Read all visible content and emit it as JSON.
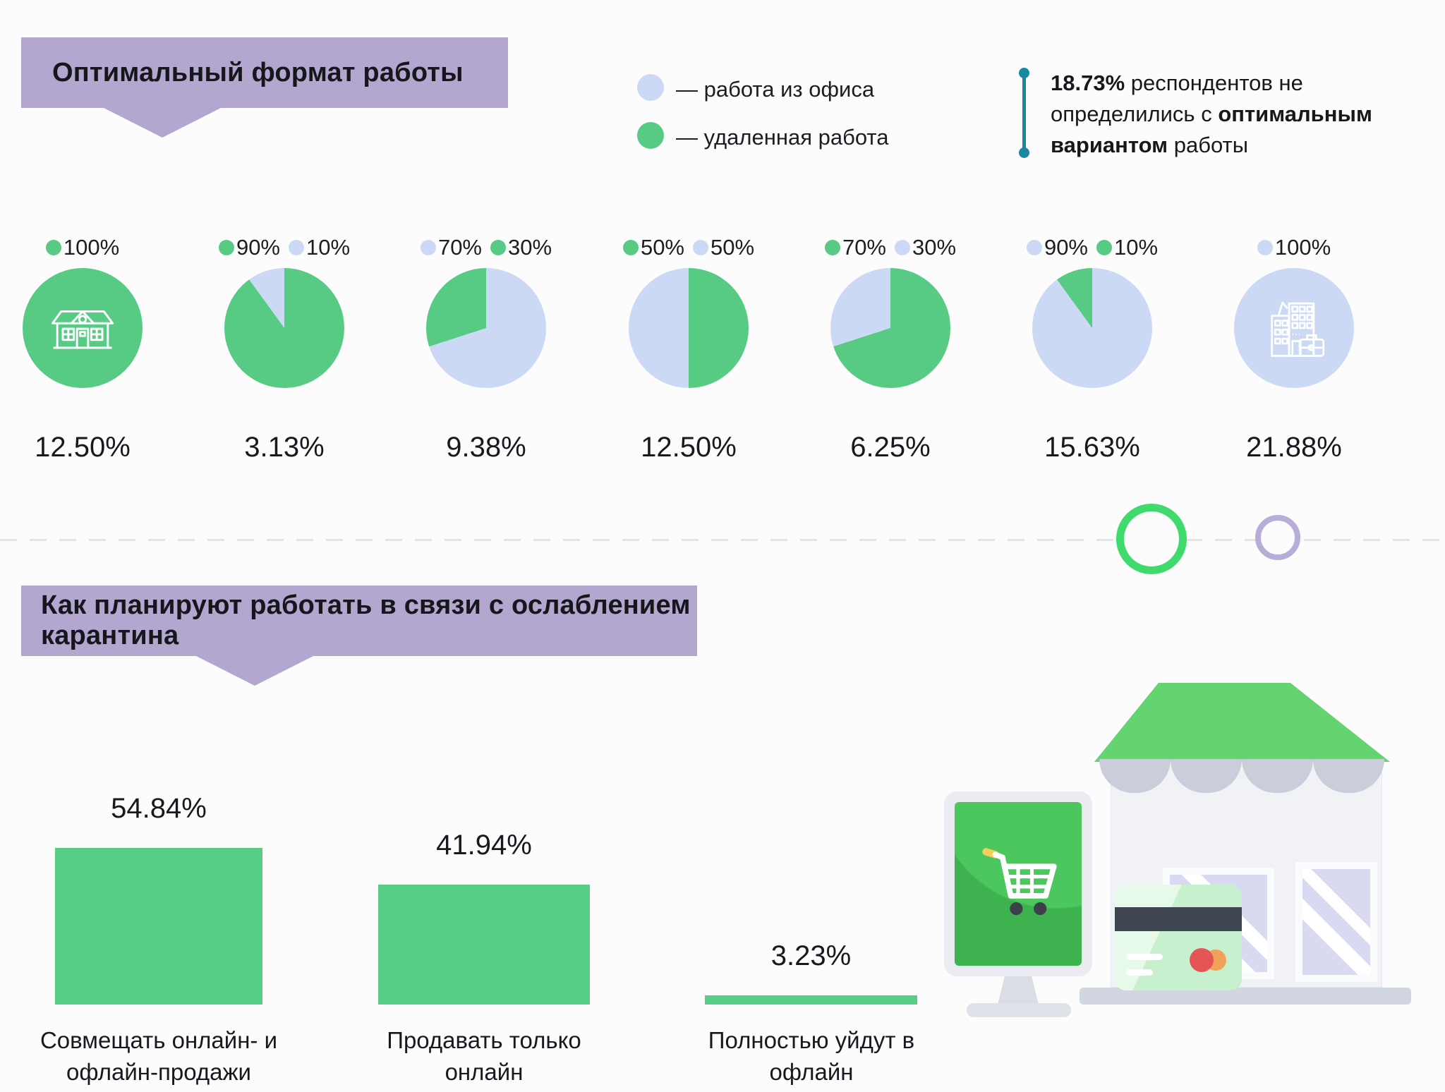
{
  "palette": {
    "green": "#57CB84",
    "blue": "#CBD9F5",
    "banner_purple": "#B3A6CF",
    "teal": "#1B87A0",
    "ring_green": "#3EDB6C",
    "ring_purple": "#B8ACD9",
    "bar_green": "#57CD86",
    "text": "#1B1D22",
    "background": "#FCFCFD"
  },
  "section1": {
    "title": "Оптимальный формат работы",
    "legend": [
      {
        "color_key": "blue",
        "label": "— работа из офиса"
      },
      {
        "color_key": "green",
        "label": "— удаленная работа"
      }
    ],
    "note": {
      "bold1": "18.73%",
      "mid": " респондентов не определились с ",
      "bold2": "оптимальным вариантом",
      "tail": " работы"
    }
  },
  "section2": {
    "title": "Как планируют работать в связи с ослаблением карантина"
  },
  "chart_data": [
    {
      "type": "pie",
      "title": "Оптимальный формат работы",
      "legend": [
        {
          "label": "работа из офиса",
          "color": "#CBD9F5"
        },
        {
          "label": "удаленная работа",
          "color": "#57CB84"
        }
      ],
      "annotation": "18.73% респондентов не определились с оптимальным вариантом работы",
      "pies": [
        {
          "icon": "house-icon",
          "slices": [
            {
              "label": "удаленная работа",
              "color_key": "green",
              "pct": 100
            }
          ],
          "share_pct": 12.5,
          "share_label": "12.50%"
        },
        {
          "icon": null,
          "slices": [
            {
              "label": "удаленная работа",
              "color_key": "green",
              "pct": 90
            },
            {
              "label": "работа из офиса",
              "color_key": "blue",
              "pct": 10
            }
          ],
          "share_pct": 3.13,
          "share_label": "3.13%"
        },
        {
          "icon": null,
          "slices": [
            {
              "label": "работа из офиса",
              "color_key": "blue",
              "pct": 70
            },
            {
              "label": "удаленная работа",
              "color_key": "green",
              "pct": 30
            }
          ],
          "share_pct": 9.38,
          "share_label": "9.38%"
        },
        {
          "icon": null,
          "slices": [
            {
              "label": "удаленная работа",
              "color_key": "green",
              "pct": 50
            },
            {
              "label": "работа из офиса",
              "color_key": "blue",
              "pct": 50
            }
          ],
          "share_pct": 12.5,
          "share_label": "12.50%"
        },
        {
          "icon": null,
          "slices": [
            {
              "label": "удаленная работа",
              "color_key": "green",
              "pct": 70
            },
            {
              "label": "работа из офиса",
              "color_key": "blue",
              "pct": 30
            }
          ],
          "share_pct": 6.25,
          "share_label": "6.25%"
        },
        {
          "icon": null,
          "slices": [
            {
              "label": "работа из офиса",
              "color_key": "blue",
              "pct": 90
            },
            {
              "label": "удаленная работа",
              "color_key": "green",
              "pct": 10
            }
          ],
          "share_pct": 15.63,
          "share_label": "15.63%"
        },
        {
          "icon": "office-icon",
          "slices": [
            {
              "label": "работа из офиса",
              "color_key": "blue",
              "pct": 100
            }
          ],
          "share_pct": 21.88,
          "share_label": "21.88%"
        }
      ]
    },
    {
      "type": "bar",
      "title": "Как планируют работать в связи с ослаблением карантина",
      "categories": [
        "Совмещать онлайн- и офлайн-продажи",
        "Продавать только онлайн",
        "Полностью уйдут в офлайн"
      ],
      "values": [
        54.84,
        41.94,
        3.23
      ],
      "value_labels": [
        "54.84%",
        "41.94%",
        "3.23%"
      ],
      "bar_color": "#57CD86",
      "ylim": [
        0,
        60
      ],
      "grid": false,
      "legend_position": "none"
    }
  ]
}
